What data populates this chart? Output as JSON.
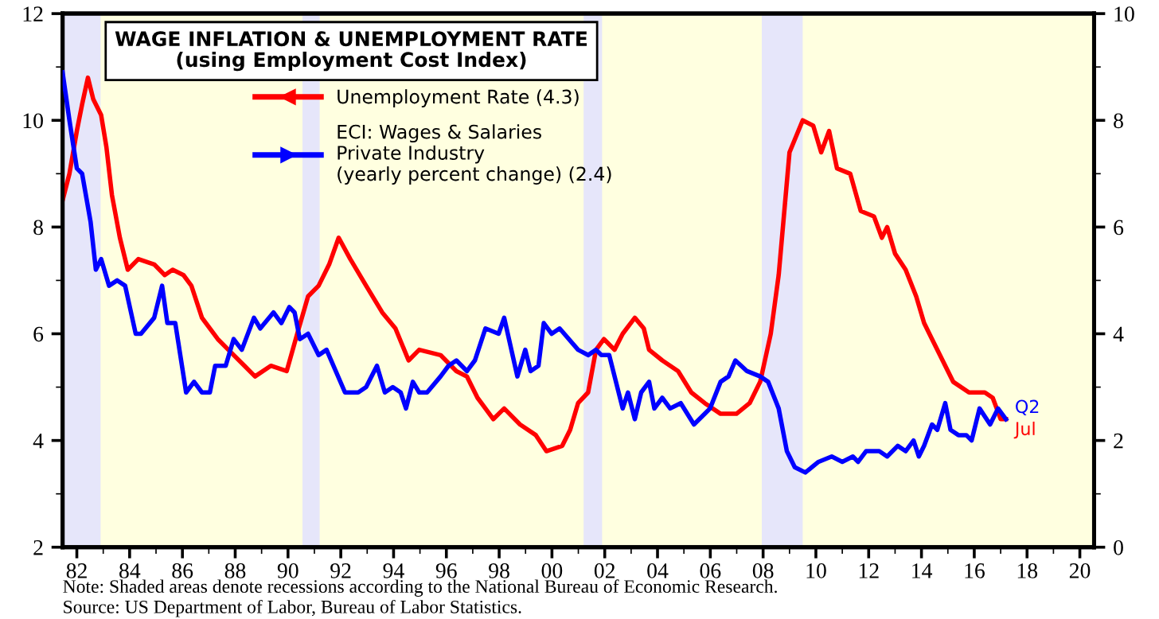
{
  "chart_data": {
    "type": "line",
    "title": "WAGE INFLATION & UNEMPLOYMENT RATE",
    "subtitle": "(using Employment Cost Index)",
    "series": [
      {
        "name": "Unemployment Rate (4.3)",
        "color": "#ff0000",
        "axis": "y",
        "x": [
          1981.46,
          1981.72,
          1982.0,
          1982.2,
          1982.42,
          1982.62,
          1982.92,
          1983.12,
          1983.33,
          1983.63,
          1983.93,
          1984.33,
          1984.93,
          1985.33,
          1985.63,
          1986.04,
          1986.34,
          1986.74,
          1987.34,
          1987.74,
          1988.35,
          1988.75,
          1989.35,
          1989.95,
          1990.35,
          1990.76,
          1991.16,
          1991.56,
          1991.92,
          1992.36,
          1992.96,
          1993.57,
          1994.07,
          1994.57,
          1994.97,
          1995.78,
          1996.38,
          1996.78,
          1997.18,
          1997.78,
          1998.19,
          1998.79,
          1999.39,
          1999.79,
          2000.39,
          2000.69,
          2000.99,
          2001.37,
          2001.67,
          2001.97,
          2002.37,
          2002.68,
          2003.14,
          2003.48,
          2003.68,
          2004.18,
          2004.78,
          2005.28,
          2005.79,
          2006.39,
          2006.99,
          2007.49,
          2007.89,
          2008.29,
          2008.59,
          2009.0,
          2009.5,
          2009.9,
          2010.2,
          2010.5,
          2010.8,
          2011.3,
          2011.7,
          2012.2,
          2012.5,
          2012.7,
          2013.0,
          2013.4,
          2013.8,
          2014.1,
          2014.4,
          2014.8,
          2015.2,
          2015.8,
          2016.4,
          2016.7,
          2017.0,
          2017.2
        ],
        "values": [
          8.5,
          9.0,
          9.8,
          10.3,
          10.8,
          10.4,
          10.1,
          9.5,
          8.6,
          7.8,
          7.2,
          7.4,
          7.3,
          7.1,
          7.2,
          7.1,
          6.9,
          6.3,
          5.9,
          5.7,
          5.4,
          5.2,
          5.4,
          5.3,
          6.0,
          6.7,
          6.9,
          7.3,
          7.8,
          7.4,
          6.9,
          6.4,
          6.1,
          5.5,
          5.7,
          5.6,
          5.3,
          5.2,
          4.8,
          4.4,
          4.6,
          4.3,
          4.1,
          3.8,
          3.9,
          4.2,
          4.7,
          4.9,
          5.7,
          5.9,
          5.7,
          6.0,
          6.3,
          6.1,
          5.7,
          5.5,
          5.3,
          4.9,
          4.7,
          4.5,
          4.5,
          4.7,
          5.1,
          6.0,
          7.1,
          9.4,
          10.0,
          9.9,
          9.4,
          9.8,
          9.1,
          9.0,
          8.3,
          8.2,
          7.8,
          8.0,
          7.5,
          7.2,
          6.7,
          6.2,
          5.9,
          5.5,
          5.1,
          4.9,
          4.9,
          4.8,
          4.4,
          4.4
        ]
      },
      {
        "name": "ECI: Wages & Salaries\nPrivate Industry\n(yearly percent change) (2.4)",
        "color": "#0000ff",
        "axis": "y2",
        "x": [
          1981.46,
          1981.72,
          1982.0,
          1982.2,
          1982.52,
          1982.72,
          1982.92,
          1983.22,
          1983.53,
          1983.83,
          1984.23,
          1984.43,
          1984.93,
          1985.23,
          1985.43,
          1985.73,
          1986.14,
          1986.44,
          1986.74,
          1987.04,
          1987.24,
          1987.64,
          1987.94,
          1988.25,
          1988.71,
          1988.95,
          1989.45,
          1989.75,
          1990.05,
          1990.25,
          1990.45,
          1990.76,
          1991.16,
          1991.46,
          1992.16,
          1992.66,
          1992.96,
          1993.37,
          1993.67,
          1993.97,
          1994.27,
          1994.47,
          1994.73,
          1994.97,
          1995.27,
          1995.78,
          1996.08,
          1996.38,
          1996.78,
          1997.08,
          1997.48,
          1997.98,
          1998.19,
          1998.69,
          1998.99,
          1999.19,
          1999.49,
          1999.69,
          1999.99,
          2000.29,
          2000.99,
          2001.37,
          2001.67,
          2001.87,
          2002.17,
          2002.68,
          2002.88,
          2003.14,
          2003.38,
          2003.68,
          2003.88,
          2004.18,
          2004.48,
          2004.88,
          2005.38,
          2005.79,
          2005.99,
          2006.39,
          2006.69,
          2006.95,
          2007.39,
          2007.89,
          2008.19,
          2008.59,
          2008.9,
          2009.2,
          2009.6,
          2010.1,
          2010.6,
          2011.0,
          2011.4,
          2011.6,
          2011.9,
          2012.4,
          2012.7,
          2013.1,
          2013.4,
          2013.7,
          2013.9,
          2014.1,
          2014.4,
          2014.6,
          2014.9,
          2015.1,
          2015.4,
          2015.7,
          2015.9,
          2016.2,
          2016.6,
          2016.9,
          2017.2
        ],
        "values": [
          8.9,
          8.0,
          7.1,
          7.0,
          6.1,
          5.2,
          5.4,
          4.9,
          5.0,
          4.9,
          4.0,
          4.0,
          4.3,
          4.9,
          4.2,
          4.2,
          2.9,
          3.1,
          2.9,
          2.9,
          3.4,
          3.4,
          3.9,
          3.7,
          4.3,
          4.1,
          4.4,
          4.2,
          4.5,
          4.4,
          3.9,
          4.0,
          3.6,
          3.7,
          2.9,
          2.9,
          3.0,
          3.4,
          2.9,
          3.0,
          2.9,
          2.6,
          3.1,
          2.9,
          2.9,
          3.2,
          3.4,
          3.5,
          3.3,
          3.5,
          4.1,
          4.0,
          4.3,
          3.2,
          3.7,
          3.3,
          3.4,
          4.2,
          4.0,
          4.1,
          3.7,
          3.6,
          3.7,
          3.6,
          3.6,
          2.6,
          2.9,
          2.4,
          2.9,
          3.1,
          2.6,
          2.8,
          2.6,
          2.7,
          2.3,
          2.5,
          2.6,
          3.1,
          3.2,
          3.5,
          3.3,
          3.2,
          3.1,
          2.6,
          1.8,
          1.5,
          1.4,
          1.6,
          1.7,
          1.6,
          1.7,
          1.6,
          1.8,
          1.8,
          1.7,
          1.9,
          1.8,
          2.0,
          1.7,
          1.9,
          2.3,
          2.2,
          2.7,
          2.2,
          2.1,
          2.1,
          2.0,
          2.6,
          2.3,
          2.6,
          2.4
        ]
      }
    ],
    "xlim": [
      1981.46,
      2020.54
    ],
    "xticks": [
      {
        "value": 1982,
        "label": "82"
      },
      {
        "value": 1984,
        "label": "84"
      },
      {
        "value": 1986,
        "label": "86"
      },
      {
        "value": 1988,
        "label": "88"
      },
      {
        "value": 1990,
        "label": "90"
      },
      {
        "value": 1992,
        "label": "92"
      },
      {
        "value": 1994,
        "label": "94"
      },
      {
        "value": 1996,
        "label": "96"
      },
      {
        "value": 1998,
        "label": "98"
      },
      {
        "value": 2000,
        "label": "00"
      },
      {
        "value": 2002,
        "label": "02"
      },
      {
        "value": 2004,
        "label": "04"
      },
      {
        "value": 2006,
        "label": "06"
      },
      {
        "value": 2008,
        "label": "08"
      },
      {
        "value": 2010,
        "label": "10"
      },
      {
        "value": 2012,
        "label": "12"
      },
      {
        "value": 2014,
        "label": "14"
      },
      {
        "value": 2016,
        "label": "16"
      },
      {
        "value": 2018,
        "label": "18"
      },
      {
        "value": 2020,
        "label": "20"
      }
    ],
    "ylim": [
      2,
      12
    ],
    "yticks": [
      2,
      4,
      6,
      8,
      10,
      12
    ],
    "y2lim": [
      0,
      10
    ],
    "y2ticks": [
      0,
      2,
      4,
      6,
      8,
      10
    ],
    "bands": [
      {
        "axis": "x",
        "from": 1981.46,
        "to": 1982.9,
        "color": "#e6e6fa"
      },
      {
        "axis": "x",
        "from": 1990.55,
        "to": 1991.2,
        "color": "#e6e6fa"
      },
      {
        "axis": "x",
        "from": 2001.2,
        "to": 2001.9,
        "color": "#e6e6fa"
      },
      {
        "axis": "x",
        "from": 2007.95,
        "to": 2009.5,
        "color": "#e6e6fa"
      }
    ],
    "annotations": [
      "Q2",
      "Jul",
      "Note: Shaded areas denote recessions according to the National Bureau of Economic Research.",
      "Source: US Department of Labor, Bureau of Labor Statistics."
    ],
    "legend": "top",
    "grid": false
  }
}
